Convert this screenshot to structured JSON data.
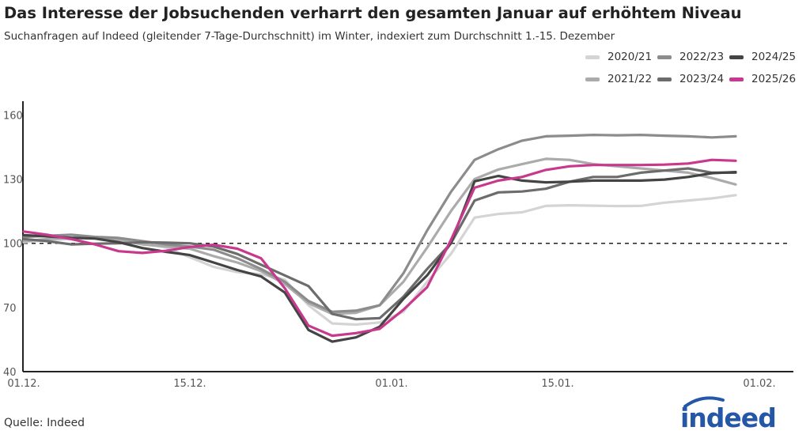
{
  "title": "Das Interesse der Jobsuchenden verharrt den gesamten Januar auf erhöhtem Niveau",
  "subtitle": "Suchanfragen auf Indeed (gleitender 7-Tage-Durchschnitt) im Winter, indexiert zum Durchschnitt 1.-15. Dezember",
  "source": "Quelle: Indeed",
  "logo": {
    "text": "indeed",
    "color": "#2557a7"
  },
  "chart_data": {
    "type": "line",
    "title": "Das Interesse der Jobsuchenden verharrt den gesamten Januar auf erhöhtem Niveau",
    "xlabel": "",
    "ylabel": "",
    "ylim": [
      40,
      165
    ],
    "yticks": [
      "40",
      "70",
      "100",
      "130",
      "160"
    ],
    "xticks": [
      "01.12.",
      "15.12.",
      "01.01.",
      "15.01.",
      "01.02."
    ],
    "reference_line": {
      "value": 100,
      "style": "dashed"
    },
    "grid": false,
    "legend_placement": "top-right",
    "x": [
      "01.12.",
      "03.12.",
      "05.12.",
      "07.12.",
      "09.12.",
      "11.12.",
      "13.12.",
      "15.12.",
      "17.12.",
      "19.12.",
      "21.12.",
      "23.12.",
      "25.12.",
      "27.12.",
      "29.12.",
      "31.12.",
      "02.01.",
      "04.01.",
      "06.01.",
      "08.01.",
      "10.01.",
      "12.01.",
      "14.01.",
      "16.01.",
      "18.01.",
      "20.01.",
      "22.01.",
      "24.01.",
      "26.01.",
      "28.01.",
      "30.01."
    ],
    "series": [
      {
        "name": "2020/21",
        "color": "#d4d4d4",
        "values": [
          100.5,
          101.5,
          102,
          102.5,
          102,
          100,
          98,
          93.5,
          89,
          86.5,
          85.5,
          83,
          71,
          62.5,
          62,
          63,
          68,
          82,
          95,
          112,
          113.7,
          114.5,
          117.5,
          117.8,
          117.6,
          117.4,
          117.5,
          119,
          120,
          121,
          122.5
        ]
      },
      {
        "name": "2021/22",
        "color": "#ababab",
        "values": [
          101,
          102,
          102.5,
          102.5,
          101.5,
          99.5,
          98.5,
          97.5,
          94,
          91,
          87,
          81,
          72,
          67,
          67.5,
          71,
          82,
          98,
          115,
          130,
          134.5,
          137,
          139.5,
          139,
          137,
          136,
          135,
          134,
          133,
          130.5,
          127.5
        ]
      },
      {
        "name": "2022/23",
        "color": "#8c8c8c",
        "values": [
          103,
          103.5,
          104,
          103,
          102.5,
          101,
          99.5,
          98.5,
          97,
          93,
          88,
          82,
          73,
          68,
          68.5,
          71,
          86,
          106,
          124,
          139,
          144,
          148,
          150,
          150.3,
          150.7,
          150.5,
          150.7,
          150.3,
          150,
          149.5,
          150
        ]
      },
      {
        "name": "2023/24",
        "color": "#6c6c6c",
        "values": [
          102,
          101,
          99.5,
          99.8,
          100,
          100.5,
          100.3,
          100,
          98.5,
          95,
          90,
          85,
          80,
          67,
          64.5,
          65,
          75,
          88,
          100,
          120,
          123.8,
          124.2,
          125.5,
          128.8,
          131,
          131,
          133,
          134,
          135,
          133,
          133
        ]
      },
      {
        "name": "2024/25",
        "color": "#444444",
        "values": [
          103.8,
          103.2,
          102.6,
          102.2,
          100.5,
          97.8,
          96,
          94.5,
          91,
          87.5,
          84.5,
          77,
          59.5,
          54,
          56,
          61,
          74,
          85,
          100,
          129,
          131.5,
          129.3,
          128.5,
          128.8,
          129.3,
          129.3,
          129.3,
          129.8,
          131,
          132.8,
          133.3
        ]
      },
      {
        "name": "2025/26",
        "color": "#c8398e",
        "values": [
          105.5,
          104,
          102,
          99.5,
          96.3,
          95.5,
          96.5,
          98.3,
          99.3,
          97.5,
          93,
          79,
          61.5,
          56.8,
          58,
          60,
          69,
          79.5,
          101.5,
          126,
          129.3,
          131,
          134.3,
          136,
          136.6,
          136.6,
          136.6,
          136.8,
          137.3,
          139,
          138.6
        ]
      }
    ]
  }
}
